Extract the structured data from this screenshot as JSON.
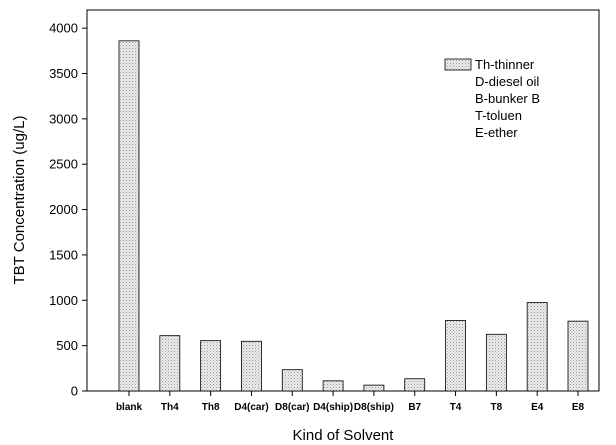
{
  "chart_data": {
    "type": "bar",
    "categories": [
      "blank",
      "Th4",
      "Th8",
      "D4(car)",
      "D8(car)",
      "D4(ship)",
      "D8(ship)",
      "B7",
      "T4",
      "T8",
      "E4",
      "E8"
    ],
    "values": [
      3860,
      610,
      555,
      548,
      235,
      112,
      65,
      135,
      778,
      625,
      975,
      770
    ],
    "title": "",
    "xlabel": "Kind of Solvent",
    "ylabel": "TBT Concentration (ug/L)",
    "ylim": [
      0,
      4200
    ],
    "yticks": [
      0,
      500,
      1000,
      1500,
      2000,
      2500,
      3000,
      3500,
      4000
    ],
    "grid": false,
    "legend": {
      "position": "top-right",
      "lines": [
        "Th-thinner",
        "D-diesel oil",
        "B-bunker B",
        "T-toluen",
        "E-ether"
      ]
    },
    "colors": {
      "bar_fill": "#e4e4e4",
      "bar_stroke": "#000000",
      "axis": "#000000"
    }
  }
}
